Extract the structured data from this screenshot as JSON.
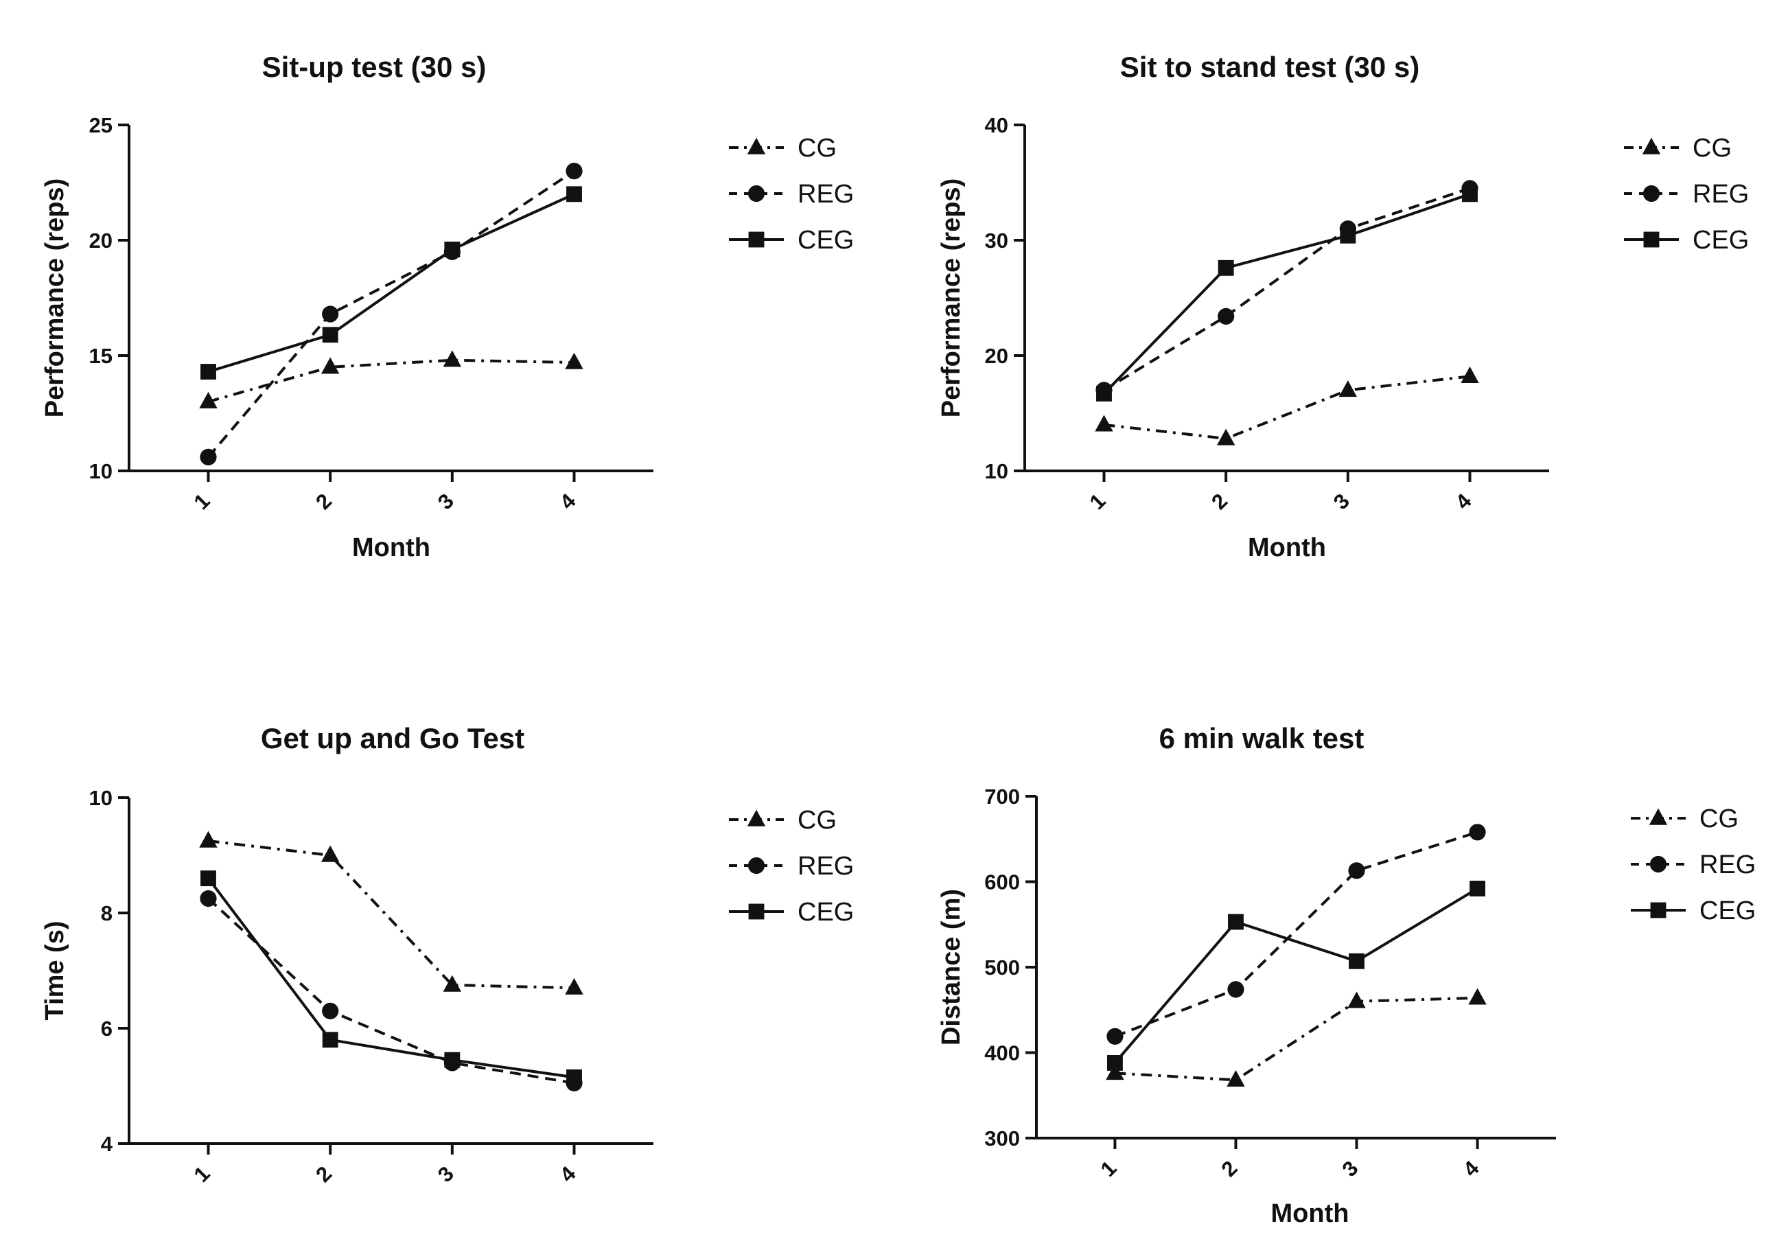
{
  "legend": {
    "items": [
      {
        "label": "CG",
        "marker": "triangle",
        "dash": "dashdot"
      },
      {
        "label": "REG",
        "marker": "circle",
        "dash": "dashed"
      },
      {
        "label": "CEG",
        "marker": "square",
        "dash": "solid"
      }
    ]
  },
  "chart_data": [
    {
      "type": "line",
      "title": "Sit-up test (30 s)",
      "xlabel": "Month",
      "ylabel": "Performance (reps)",
      "x": [
        1,
        2,
        3,
        4
      ],
      "ylim": [
        10,
        25
      ],
      "yticks": [
        10,
        15,
        20,
        25
      ],
      "series": [
        {
          "name": "CG",
          "marker": "triangle",
          "dash": "dashdot",
          "values": [
            13.0,
            14.5,
            14.8,
            14.7
          ]
        },
        {
          "name": "REG",
          "marker": "circle",
          "dash": "dashed",
          "values": [
            10.6,
            16.8,
            19.5,
            23.0
          ]
        },
        {
          "name": "CEG",
          "marker": "square",
          "dash": "solid",
          "values": [
            14.3,
            15.9,
            19.6,
            22.0
          ]
        }
      ],
      "legend_position": "right"
    },
    {
      "type": "line",
      "title": "Sit to stand test (30 s)",
      "xlabel": "Month",
      "ylabel": "Performance (reps)",
      "x": [
        1,
        2,
        3,
        4
      ],
      "ylim": [
        10,
        40
      ],
      "yticks": [
        10,
        20,
        30,
        40
      ],
      "series": [
        {
          "name": "CG",
          "marker": "triangle",
          "dash": "dashdot",
          "values": [
            14.0,
            12.8,
            17.0,
            18.2
          ]
        },
        {
          "name": "REG",
          "marker": "circle",
          "dash": "dashed",
          "values": [
            17.0,
            23.4,
            31.0,
            34.5
          ]
        },
        {
          "name": "CEG",
          "marker": "square",
          "dash": "solid",
          "values": [
            16.7,
            27.6,
            30.4,
            34.0
          ]
        }
      ],
      "legend_position": "right"
    },
    {
      "type": "line",
      "title": "Get up and Go Test",
      "xlabel": "",
      "ylabel": "Time (s)",
      "x": [
        1,
        2,
        3,
        4
      ],
      "ylim": [
        4,
        10
      ],
      "yticks": [
        4,
        6,
        8,
        10
      ],
      "series": [
        {
          "name": "CG",
          "marker": "triangle",
          "dash": "dashdot",
          "values": [
            9.25,
            9.0,
            6.75,
            6.7
          ]
        },
        {
          "name": "REG",
          "marker": "circle",
          "dash": "dashed",
          "values": [
            8.25,
            6.3,
            5.4,
            5.05
          ]
        },
        {
          "name": "CEG",
          "marker": "square",
          "dash": "solid",
          "values": [
            8.6,
            5.8,
            5.45,
            5.15
          ]
        }
      ],
      "legend_position": "right"
    },
    {
      "type": "line",
      "title": "6 min walk test",
      "xlabel": "Month",
      "ylabel": "Distance (m)",
      "x": [
        1,
        2,
        3,
        4
      ],
      "ylim": [
        300,
        700
      ],
      "yticks": [
        300,
        400,
        500,
        600,
        700
      ],
      "series": [
        {
          "name": "CG",
          "marker": "triangle",
          "dash": "dashdot",
          "values": [
            376,
            368,
            460,
            464
          ]
        },
        {
          "name": "REG",
          "marker": "circle",
          "dash": "dashed",
          "values": [
            419,
            474,
            613,
            658
          ]
        },
        {
          "name": "CEG",
          "marker": "square",
          "dash": "solid",
          "values": [
            388,
            553,
            507,
            592
          ]
        }
      ],
      "legend_position": "right"
    }
  ]
}
